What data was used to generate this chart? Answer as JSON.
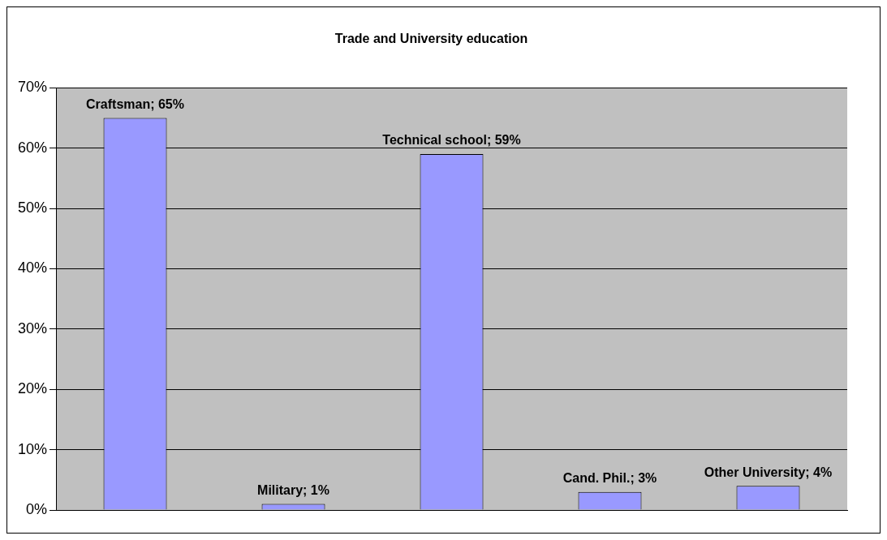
{
  "chart_data": {
    "type": "bar",
    "title": "Trade and University education",
    "categories": [
      null,
      null,
      null,
      null,
      null
    ],
    "values": [
      65,
      1,
      59,
      3,
      4
    ],
    "color": "#9999ff",
    "value_labels": [
      "Craftsman; 65%",
      "Military; 1%",
      "Technical school; 59%",
      "Cand. Phil.; 3%",
      "Other University; 4%"
    ],
    "ylim": [
      0,
      70
    ],
    "yticks": [
      {
        "value": 0,
        "label": "0%"
      },
      {
        "value": 10,
        "label": "10%"
      },
      {
        "value": 20,
        "label": "20%"
      },
      {
        "value": 30,
        "label": "30%"
      },
      {
        "value": 40,
        "label": "40%"
      },
      {
        "value": 50,
        "label": "50%"
      },
      {
        "value": 60,
        "label": "60%"
      },
      {
        "value": 70,
        "label": "70%"
      }
    ],
    "grid": "y",
    "tick_labels": "y",
    "legend": false
  }
}
